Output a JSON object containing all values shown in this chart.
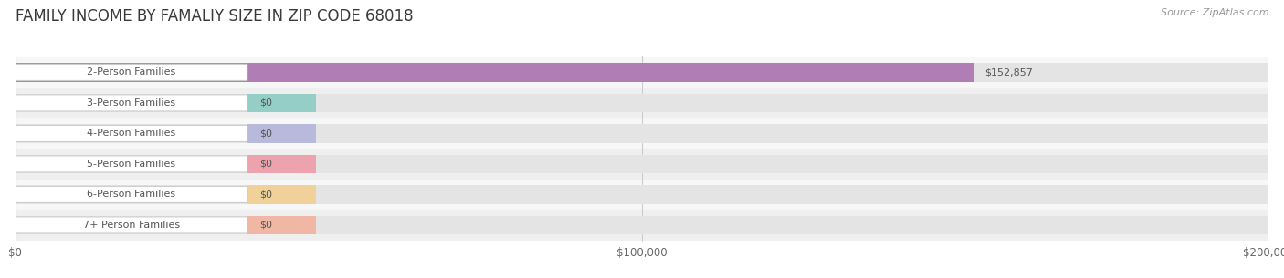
{
  "title": "FAMILY INCOME BY FAMALIY SIZE IN ZIP CODE 68018",
  "source": "Source: ZipAtlas.com",
  "categories": [
    "2-Person Families",
    "3-Person Families",
    "4-Person Families",
    "5-Person Families",
    "6-Person Families",
    "7+ Person Families"
  ],
  "values": [
    152857,
    0,
    0,
    0,
    0,
    0
  ],
  "bar_colors": [
    "#b07db5",
    "#72c5bc",
    "#a8a8d8",
    "#f08898",
    "#f5c97a",
    "#f4a58a"
  ],
  "xlim": [
    0,
    200000
  ],
  "xticks": [
    0,
    100000,
    200000
  ],
  "xtick_labels": [
    "$0",
    "$100,000",
    "$200,000"
  ],
  "bg_color": "#ffffff",
  "title_fontsize": 12,
  "bar_height": 0.62,
  "row_bg_even": "#f7f7f7",
  "row_bg_odd": "#efefef",
  "bar_bg_color": "#e4e4e4",
  "label_box_color": "#ffffff",
  "label_text_color": "#555555",
  "grid_color": "#cccccc",
  "source_color": "#999999",
  "value_label_color": "#555555"
}
